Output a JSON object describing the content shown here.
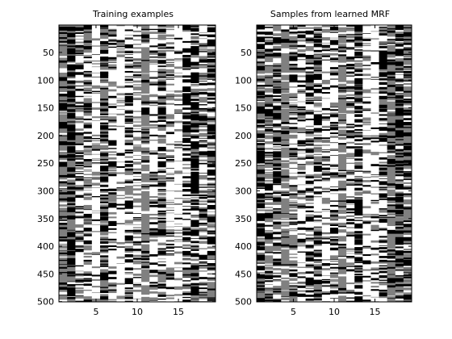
{
  "chart_data": [
    {
      "type": "heatmap",
      "title": "Training examples",
      "xlabel": "",
      "ylabel": "",
      "xlim": [
        0.5,
        19.5
      ],
      "ylim": [
        0.5,
        500.5
      ],
      "y_reversed": true,
      "x_ticks": [
        5,
        10,
        15
      ],
      "y_ticks": [
        50,
        100,
        150,
        200,
        250,
        300,
        350,
        400,
        450,
        500
      ],
      "n_columns": 19,
      "n_rows": 500,
      "value_levels": [
        1,
        2,
        3
      ],
      "colormap": [
        "#000000",
        "#808080",
        "#ffffff"
      ],
      "column_value_distribution": [
        [
          0.3,
          0.6,
          0.1
        ],
        [
          0.65,
          0.3,
          0.05
        ],
        [
          0.3,
          0.25,
          0.45
        ],
        [
          0.3,
          0.4,
          0.3
        ],
        [
          0.05,
          0.2,
          0.75
        ],
        [
          0.45,
          0.4,
          0.15
        ],
        [
          0.15,
          0.25,
          0.6
        ],
        [
          0.05,
          0.15,
          0.8
        ],
        [
          0.35,
          0.25,
          0.4
        ],
        [
          0.15,
          0.3,
          0.55
        ],
        [
          0.1,
          0.75,
          0.15
        ],
        [
          0.1,
          0.2,
          0.7
        ],
        [
          0.35,
          0.35,
          0.3
        ],
        [
          0.15,
          0.2,
          0.65
        ],
        [
          0.05,
          0.2,
          0.75
        ],
        [
          0.5,
          0.15,
          0.35
        ],
        [
          0.6,
          0.2,
          0.2
        ],
        [
          0.25,
          0.35,
          0.4
        ],
        [
          0.4,
          0.4,
          0.2
        ]
      ]
    },
    {
      "type": "heatmap",
      "title": "Samples from learned MRF",
      "xlabel": "",
      "ylabel": "",
      "xlim": [
        0.5,
        19.5
      ],
      "ylim": [
        0.5,
        500.5
      ],
      "y_reversed": true,
      "x_ticks": [
        5,
        10,
        15
      ],
      "y_ticks": [
        50,
        100,
        150,
        200,
        250,
        300,
        350,
        400,
        450,
        500
      ],
      "n_columns": 19,
      "n_rows": 500,
      "value_levels": [
        1,
        2,
        3
      ],
      "colormap": [
        "#000000",
        "#808080",
        "#ffffff"
      ],
      "column_value_distribution": [
        [
          0.55,
          0.3,
          0.15
        ],
        [
          0.3,
          0.4,
          0.3
        ],
        [
          0.45,
          0.35,
          0.2
        ],
        [
          0.1,
          0.75,
          0.15
        ],
        [
          0.3,
          0.35,
          0.35
        ],
        [
          0.25,
          0.2,
          0.55
        ],
        [
          0.35,
          0.2,
          0.45
        ],
        [
          0.4,
          0.25,
          0.35
        ],
        [
          0.2,
          0.2,
          0.6
        ],
        [
          0.3,
          0.2,
          0.5
        ],
        [
          0.1,
          0.75,
          0.15
        ],
        [
          0.25,
          0.2,
          0.55
        ],
        [
          0.55,
          0.2,
          0.25
        ],
        [
          0.1,
          0.2,
          0.7
        ],
        [
          0.1,
          0.15,
          0.75
        ],
        [
          0.5,
          0.15,
          0.35
        ],
        [
          0.3,
          0.6,
          0.1
        ],
        [
          0.55,
          0.25,
          0.2
        ],
        [
          0.45,
          0.4,
          0.15
        ]
      ]
    }
  ]
}
